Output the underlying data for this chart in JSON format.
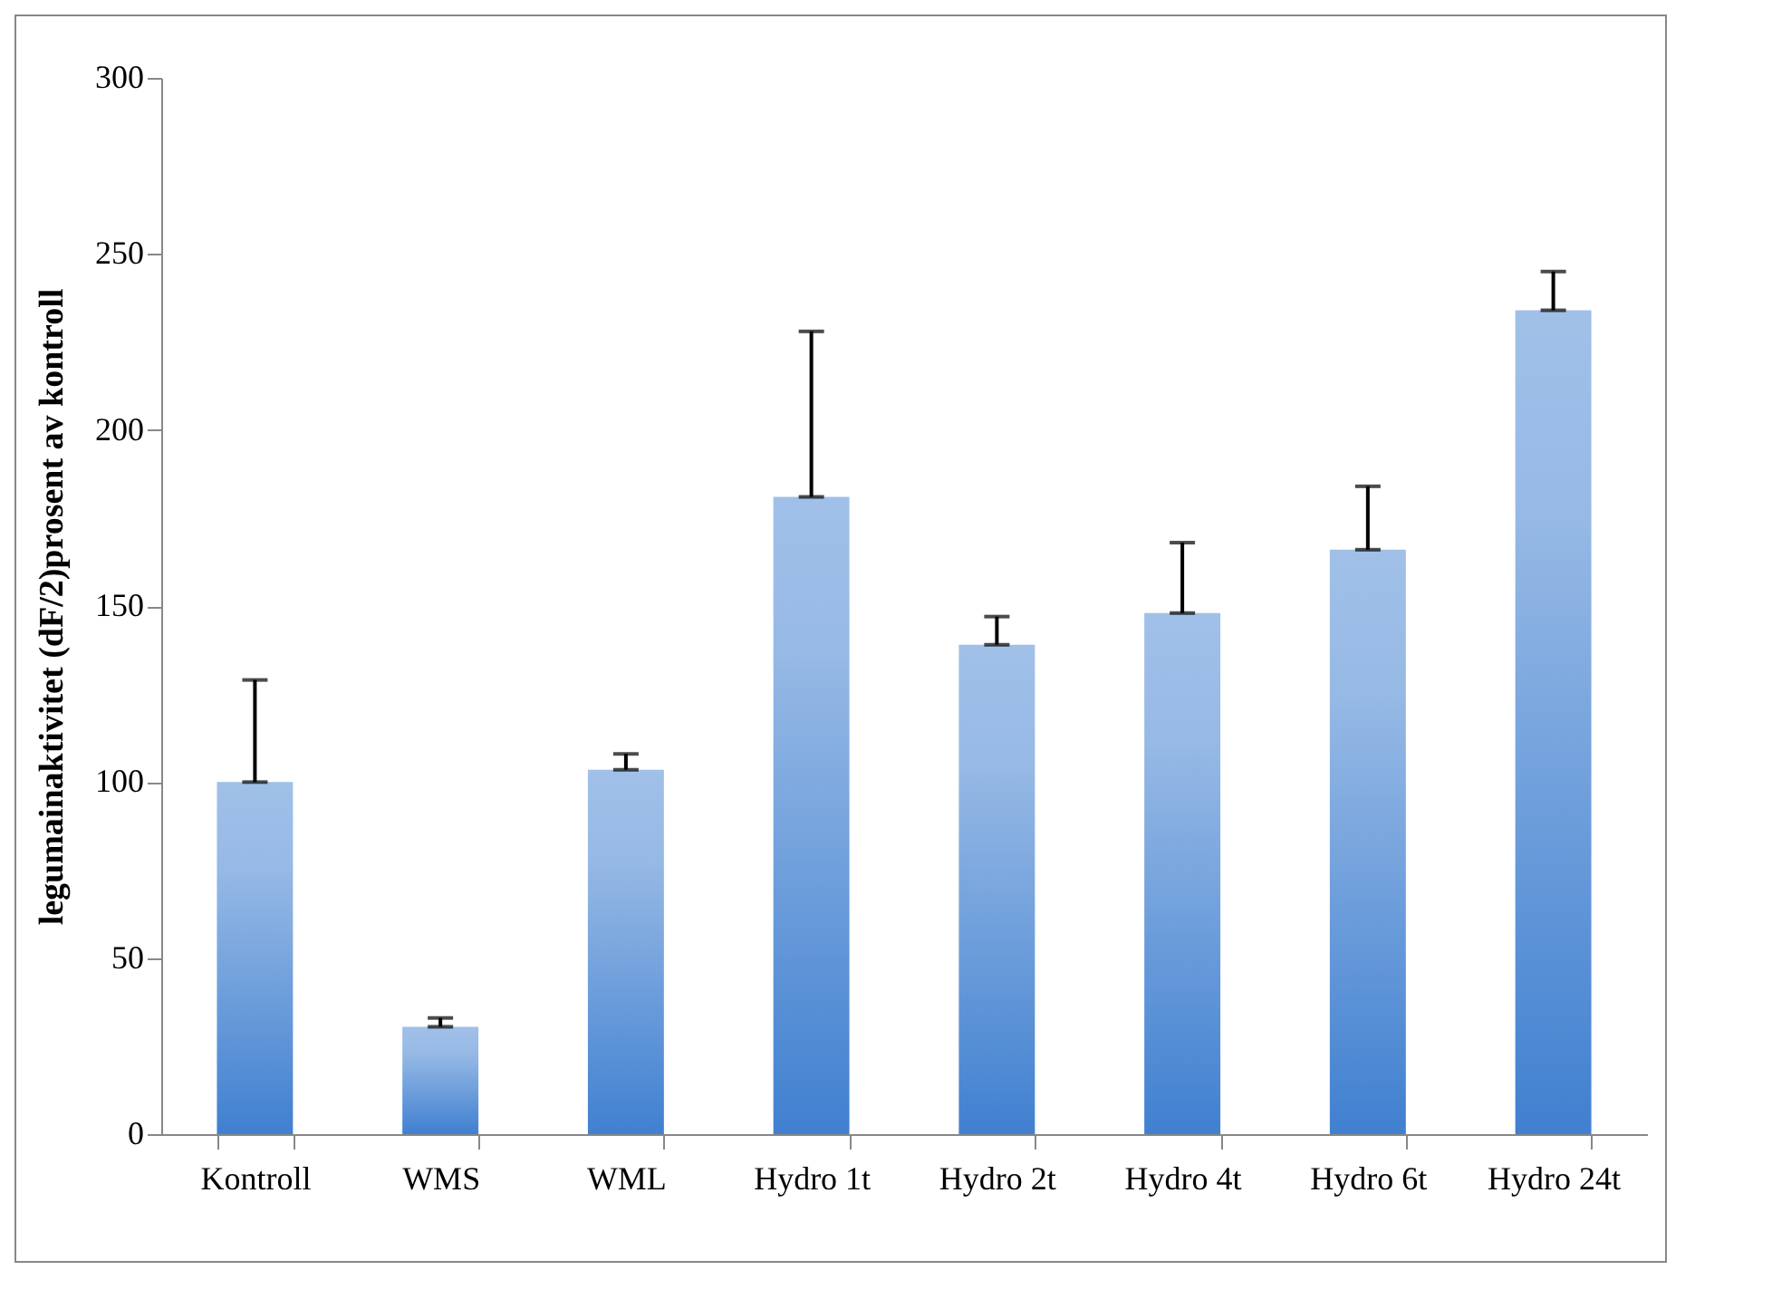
{
  "chart_data": {
    "type": "bar",
    "ylabel": "legumainaktivitet (dF/2)prosent av kontroll",
    "categories": [
      "Kontroll",
      "WMS",
      "WML",
      "Hydro 1t",
      "Hydro 2t",
      "Hydro 4t",
      "Hydro 6t",
      "Hydro 24t"
    ],
    "values": [
      100,
      30.5,
      103.5,
      181,
      139,
      148,
      166,
      234
    ],
    "errors": [
      [
        100,
        129
      ],
      [
        30.5,
        33
      ],
      [
        103.5,
        108
      ],
      [
        181,
        228
      ],
      [
        139,
        147
      ],
      [
        148,
        168
      ],
      [
        166,
        184
      ],
      [
        234,
        245
      ]
    ],
    "color": "#4080d0",
    "ylim": [
      0,
      300
    ],
    "yticks": [
      0,
      50,
      100,
      150,
      200,
      250,
      300
    ],
    "grid": false
  }
}
